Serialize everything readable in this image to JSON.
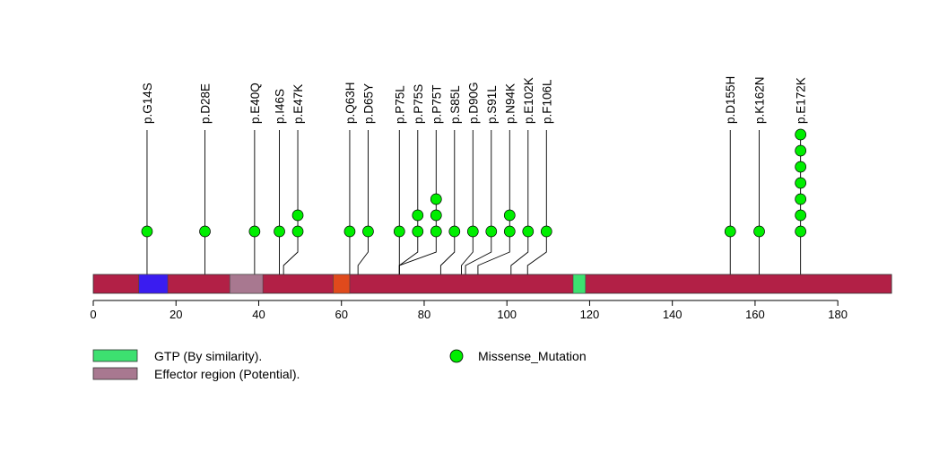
{
  "chart_data": {
    "type": "lollipop",
    "xlim": [
      0,
      193
    ],
    "x_ticks": [
      0,
      20,
      40,
      60,
      80,
      100,
      120,
      140,
      160,
      180
    ],
    "protein_length": 193,
    "protein_bar_color": "#b22046",
    "domains": [
      {
        "name": "dom-blue",
        "start": 11,
        "end": 18,
        "color": "#3a1cf0"
      },
      {
        "name": "effector-region",
        "start": 33,
        "end": 41,
        "color": "#a87890"
      },
      {
        "name": "dom-orange",
        "start": 58,
        "end": 62,
        "color": "#e04a1c"
      },
      {
        "name": "gtp",
        "start": 116,
        "end": 119,
        "color": "#3de070"
      }
    ],
    "mutations": [
      {
        "label": "p.G14S",
        "position": 13,
        "count": 1
      },
      {
        "label": "p.D28E",
        "position": 27,
        "count": 1
      },
      {
        "label": "p.E40Q",
        "position": 39,
        "count": 1
      },
      {
        "label": "p.I46S",
        "position": 45,
        "count": 1
      },
      {
        "label": "p.E47K",
        "position": 46,
        "count": 2
      },
      {
        "label": "p.Q63H",
        "position": 62,
        "count": 1
      },
      {
        "label": "p.D65Y",
        "position": 64,
        "count": 1
      },
      {
        "label": "p.P75L",
        "position": 74,
        "count": 1
      },
      {
        "label": "p.P75S",
        "position": 74,
        "count": 2
      },
      {
        "label": "p.P75T",
        "position": 74,
        "count": 3
      },
      {
        "label": "p.S85L",
        "position": 84,
        "count": 1
      },
      {
        "label": "p.D90G",
        "position": 89,
        "count": 1
      },
      {
        "label": "p.S91L",
        "position": 90,
        "count": 1
      },
      {
        "label": "p.N94K",
        "position": 93,
        "count": 2
      },
      {
        "label": "p.E102K",
        "position": 101,
        "count": 1
      },
      {
        "label": "p.F106L",
        "position": 105,
        "count": 1
      },
      {
        "label": "p.D155H",
        "position": 154,
        "count": 1
      },
      {
        "label": "p.K162N",
        "position": 161,
        "count": 1
      },
      {
        "label": "p.E172K",
        "position": 171,
        "count": 7
      }
    ],
    "marker_color": "#00ee00",
    "legend": [
      {
        "label": "GTP (By similarity).",
        "kind": "box",
        "color": "#3de070"
      },
      {
        "label": "Effector region (Potential).",
        "kind": "box",
        "color": "#a87890"
      },
      {
        "label": "Missense_Mutation",
        "kind": "circle",
        "color": "#00ee00"
      }
    ]
  }
}
